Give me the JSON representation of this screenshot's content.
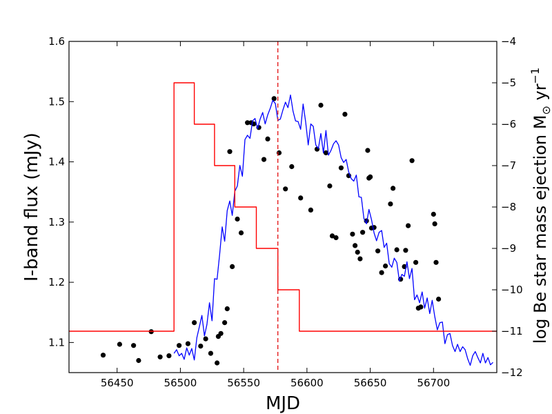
{
  "chart_data": {
    "type": "line",
    "xlabel": "MJD",
    "ylabel_left": "I-band flux (mJy)",
    "ylabel_right_main": "log Be star mass ejection M",
    "ylabel_right_sub": "⊙",
    "ylabel_right_unit": " yr",
    "ylabel_right_sup": "−1",
    "xlim": [
      56412,
      56750
    ],
    "ylim_left": [
      1.05,
      1.6
    ],
    "ylim_right": [
      -12,
      -4
    ],
    "x_ticks": [
      56450,
      56500,
      56550,
      56600,
      56650,
      56700
    ],
    "x_tick_labels": [
      "56450",
      "56500",
      "56550",
      "56600",
      "56650",
      "56700"
    ],
    "yl_ticks": [
      1.1,
      1.2,
      1.3,
      1.4,
      1.5,
      1.6
    ],
    "yl_tick_labels": [
      "1.1",
      "1.2",
      "1.3",
      "1.4",
      "1.5",
      "1.6"
    ],
    "yr_ticks": [
      -12,
      -11,
      -10,
      -9,
      -8,
      -7,
      -6,
      -5,
      -4
    ],
    "yr_tick_labels": [
      "−12",
      "−11",
      "−10",
      "−9",
      "−8",
      "−7",
      "−6",
      "−5",
      "−4"
    ],
    "vline": {
      "x": 56577,
      "color": "#e41a1c",
      "style": "dashed"
    },
    "colors": {
      "points": "#000000",
      "model_line": "#0000ff",
      "mass_ejection": "#ff0000"
    },
    "series": [
      {
        "kind": "scatter",
        "axis": "left",
        "x": [
          56439,
          56452,
          56463,
          56467,
          56477,
          56484,
          56491,
          56499,
          56506,
          56511,
          56516,
          56520,
          56524,
          56529,
          56530,
          56532,
          56535,
          56537,
          56539,
          56541,
          56545,
          56548,
          56553,
          56556,
          56558,
          56562,
          56566,
          56569,
          56574,
          56578,
          56583,
          56588,
          56595,
          56603,
          56608,
          56611,
          56615,
          56618,
          56620,
          56623,
          56627,
          56630,
          56633,
          56636,
          56638,
          56640,
          56642,
          56644,
          56647,
          56648,
          56649,
          56650,
          56651,
          56653,
          56656,
          56659,
          56662,
          56666,
          56668,
          56671,
          56674,
          56677,
          56678,
          56680,
          56683,
          56686,
          56688,
          56690,
          56700,
          56701,
          56702,
          56704
        ],
        "y": [
          1.079,
          1.097,
          1.095,
          1.07,
          1.118,
          1.076,
          1.078,
          1.095,
          1.098,
          1.133,
          1.094,
          1.106,
          1.082,
          1.066,
          1.11,
          1.115,
          1.133,
          1.156,
          1.417,
          1.226,
          1.305,
          1.282,
          1.465,
          1.465,
          1.463,
          1.457,
          1.404,
          1.438,
          1.505,
          1.415,
          1.355,
          1.392,
          1.34,
          1.32,
          1.421,
          1.494,
          1.415,
          1.36,
          1.277,
          1.274,
          1.39,
          1.479,
          1.377,
          1.28,
          1.261,
          1.25,
          1.239,
          1.283,
          1.302,
          1.419,
          1.373,
          1.375,
          1.29,
          1.291,
          1.252,
          1.216,
          1.227,
          1.33,
          1.356,
          1.254,
          1.205,
          1.226,
          1.253,
          1.294,
          1.402,
          1.233,
          1.157,
          1.159,
          1.313,
          1.297,
          1.233,
          1.172
        ]
      },
      {
        "kind": "line",
        "axis": "left",
        "x": [
          56495,
          56497,
          56499,
          56501,
          56503,
          56505,
          56507,
          56509,
          56511,
          56513,
          56515,
          56517,
          56519,
          56521,
          56523,
          56525,
          56527,
          56529,
          56531,
          56533,
          56535,
          56537,
          56539,
          56541,
          56543,
          56545,
          56547,
          56549,
          56551,
          56553,
          56555,
          56557,
          56559,
          56561,
          56563,
          56565,
          56567,
          56569,
          56571,
          56573,
          56575,
          56577,
          56579,
          56581,
          56583,
          56585,
          56587,
          56589,
          56591,
          56593,
          56595,
          56597,
          56599,
          56601,
          56603,
          56605,
          56607,
          56609,
          56611,
          56613,
          56615,
          56617,
          56619,
          56621,
          56623,
          56625,
          56627,
          56629,
          56631,
          56633,
          56635,
          56637,
          56639,
          56641,
          56643,
          56645,
          56647,
          56649,
          56651,
          56653,
          56655,
          56657,
          56659,
          56661,
          56663,
          56665,
          56667,
          56669,
          56671,
          56673,
          56675,
          56677,
          56679,
          56681,
          56683,
          56685,
          56687,
          56689,
          56691,
          56693,
          56695,
          56697,
          56699,
          56701,
          56703,
          56705,
          56707,
          56709,
          56711,
          56713,
          56715,
          56717,
          56719,
          56721,
          56723,
          56725,
          56727,
          56729,
          56731,
          56733,
          56735,
          56737,
          56739,
          56741,
          56743,
          56745,
          56747
        ],
        "y": [
          1.082,
          1.088,
          1.078,
          1.082,
          1.072,
          1.091,
          1.079,
          1.09,
          1.071,
          1.108,
          1.126,
          1.145,
          1.111,
          1.13,
          1.166,
          1.136,
          1.206,
          1.205,
          1.246,
          1.292,
          1.268,
          1.319,
          1.335,
          1.311,
          1.351,
          1.36,
          1.394,
          1.376,
          1.437,
          1.444,
          1.439,
          1.468,
          1.472,
          1.455,
          1.471,
          1.482,
          1.463,
          1.478,
          1.489,
          1.502,
          1.497,
          1.469,
          1.471,
          1.486,
          1.499,
          1.49,
          1.511,
          1.484,
          1.468,
          1.467,
          1.454,
          1.496,
          1.466,
          1.428,
          1.463,
          1.459,
          1.428,
          1.422,
          1.447,
          1.415,
          1.452,
          1.411,
          1.419,
          1.43,
          1.435,
          1.428,
          1.407,
          1.399,
          1.404,
          1.383,
          1.372,
          1.368,
          1.378,
          1.342,
          1.341,
          1.306,
          1.297,
          1.321,
          1.304,
          1.282,
          1.269,
          1.283,
          1.286,
          1.258,
          1.265,
          1.231,
          1.225,
          1.24,
          1.233,
          1.202,
          1.213,
          1.21,
          1.234,
          1.206,
          1.223,
          1.171,
          1.179,
          1.166,
          1.184,
          1.157,
          1.174,
          1.148,
          1.17,
          1.143,
          1.121,
          1.133,
          1.134,
          1.098,
          1.113,
          1.115,
          1.095,
          1.085,
          1.097,
          1.085,
          1.093,
          1.088,
          1.073,
          1.062,
          1.078,
          1.085,
          1.075,
          1.066,
          1.082,
          1.066,
          1.075,
          1.063,
          1.067
        ]
      },
      {
        "kind": "step",
        "axis": "right",
        "x": [
          56412,
          56495,
          56495,
          56511,
          56511,
          56527,
          56527,
          56543,
          56543,
          56560,
          56560,
          56577,
          56577,
          56594,
          56594,
          56750
        ],
        "y": [
          -11,
          -11,
          -5,
          -5,
          -6,
          -6,
          -7,
          -7,
          -8,
          -8,
          -9,
          -9,
          -10,
          -10,
          -11,
          -11
        ]
      }
    ]
  }
}
